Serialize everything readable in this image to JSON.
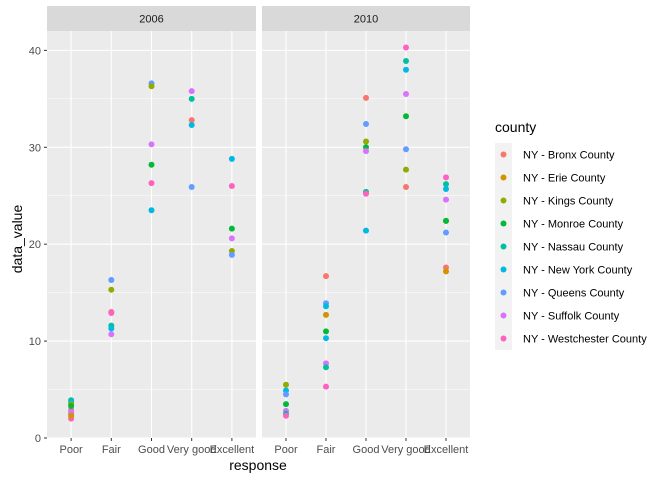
{
  "chart_data": {
    "type": "scatter",
    "xlabel": "response",
    "ylabel": "data_value",
    "categories": [
      "Poor",
      "Fair",
      "Good",
      "Very good",
      "Excellent"
    ],
    "ylim": [
      0,
      42
    ],
    "yticks": [
      0,
      10,
      20,
      30,
      40
    ],
    "grid": true,
    "legend": {
      "title": "county",
      "placement": "right"
    },
    "colors": {
      "panel_bg": "#ebebeb",
      "strip_bg": "#d9d9d9",
      "grid": "#ffffff"
    },
    "series": [
      {
        "name": "NY - Bronx County",
        "color": "#F8766D"
      },
      {
        "name": "NY - Erie County",
        "color": "#D39200"
      },
      {
        "name": "NY - Kings County",
        "color": "#93AA00"
      },
      {
        "name": "NY - Monroe County",
        "color": "#00BA38"
      },
      {
        "name": "NY - Nassau County",
        "color": "#00C19F"
      },
      {
        "name": "NY - New York County",
        "color": "#00B9E3"
      },
      {
        "name": "NY - Queens County",
        "color": "#619CFF"
      },
      {
        "name": "NY - Suffolk County",
        "color": "#DB72FB"
      },
      {
        "name": "NY - Westchester County",
        "color": "#FF61C3"
      }
    ],
    "facets": [
      {
        "label": "2006",
        "points": [
          {
            "series": 0,
            "x": "Poor",
            "y": 2.9
          },
          {
            "series": 4,
            "x": "Poor",
            "y": 3.9
          },
          {
            "series": 5,
            "x": "Poor",
            "y": 3.7
          },
          {
            "series": 2,
            "x": "Poor",
            "y": 3.5
          },
          {
            "series": 3,
            "x": "Poor",
            "y": 3.3
          },
          {
            "series": 6,
            "x": "Poor",
            "y": 2.5
          },
          {
            "series": 7,
            "x": "Poor",
            "y": 2.7
          },
          {
            "series": 8,
            "x": "Poor",
            "y": 2.0
          },
          {
            "series": 1,
            "x": "Poor",
            "y": 2.3
          },
          {
            "series": 6,
            "x": "Fair",
            "y": 16.3
          },
          {
            "series": 2,
            "x": "Fair",
            "y": 15.3
          },
          {
            "series": 0,
            "x": "Fair",
            "y": 13.0
          },
          {
            "series": 8,
            "x": "Fair",
            "y": 12.9
          },
          {
            "series": 4,
            "x": "Fair",
            "y": 11.6
          },
          {
            "series": 5,
            "x": "Fair",
            "y": 11.3
          },
          {
            "series": 7,
            "x": "Fair",
            "y": 10.7
          },
          {
            "series": 6,
            "x": "Good",
            "y": 36.6
          },
          {
            "series": 2,
            "x": "Good",
            "y": 36.3
          },
          {
            "series": 7,
            "x": "Good",
            "y": 30.3
          },
          {
            "series": 3,
            "x": "Good",
            "y": 28.2
          },
          {
            "series": 8,
            "x": "Good",
            "y": 26.3
          },
          {
            "series": 5,
            "x": "Good",
            "y": 23.5
          },
          {
            "series": 7,
            "x": "Very good",
            "y": 35.8
          },
          {
            "series": 4,
            "x": "Very good",
            "y": 35.0
          },
          {
            "series": 0,
            "x": "Very good",
            "y": 32.8
          },
          {
            "series": 5,
            "x": "Very good",
            "y": 32.3
          },
          {
            "series": 6,
            "x": "Very good",
            "y": 25.9
          },
          {
            "series": 5,
            "x": "Excellent",
            "y": 28.8
          },
          {
            "series": 8,
            "x": "Excellent",
            "y": 26.0
          },
          {
            "series": 3,
            "x": "Excellent",
            "y": 21.6
          },
          {
            "series": 7,
            "x": "Excellent",
            "y": 20.6
          },
          {
            "series": 2,
            "x": "Excellent",
            "y": 19.3
          },
          {
            "series": 6,
            "x": "Excellent",
            "y": 18.9
          }
        ]
      },
      {
        "label": "2010",
        "points": [
          {
            "series": 2,
            "x": "Poor",
            "y": 5.5
          },
          {
            "series": 5,
            "x": "Poor",
            "y": 4.9
          },
          {
            "series": 6,
            "x": "Poor",
            "y": 4.5
          },
          {
            "series": 3,
            "x": "Poor",
            "y": 3.5
          },
          {
            "series": 7,
            "x": "Poor",
            "y": 2.8
          },
          {
            "series": 4,
            "x": "Poor",
            "y": 2.5
          },
          {
            "series": 8,
            "x": "Poor",
            "y": 2.3
          },
          {
            "series": 0,
            "x": "Fair",
            "y": 16.7
          },
          {
            "series": 6,
            "x": "Fair",
            "y": 13.9
          },
          {
            "series": 5,
            "x": "Fair",
            "y": 13.6
          },
          {
            "series": 1,
            "x": "Fair",
            "y": 12.7
          },
          {
            "series": 3,
            "x": "Fair",
            "y": 11.0
          },
          {
            "series": 5,
            "x": "Fair",
            "y": 10.3
          },
          {
            "series": 7,
            "x": "Fair",
            "y": 7.7
          },
          {
            "series": 4,
            "x": "Fair",
            "y": 7.3
          },
          {
            "series": 8,
            "x": "Fair",
            "y": 5.3
          },
          {
            "series": 0,
            "x": "Good",
            "y": 35.1
          },
          {
            "series": 6,
            "x": "Good",
            "y": 32.4
          },
          {
            "series": 2,
            "x": "Good",
            "y": 30.6
          },
          {
            "series": 3,
            "x": "Good",
            "y": 30.0
          },
          {
            "series": 7,
            "x": "Good",
            "y": 29.6
          },
          {
            "series": 4,
            "x": "Good",
            "y": 25.4
          },
          {
            "series": 8,
            "x": "Good",
            "y": 25.2
          },
          {
            "series": 5,
            "x": "Good",
            "y": 21.4
          },
          {
            "series": 8,
            "x": "Very good",
            "y": 40.3
          },
          {
            "series": 4,
            "x": "Very good",
            "y": 38.9
          },
          {
            "series": 5,
            "x": "Very good",
            "y": 38.0
          },
          {
            "series": 7,
            "x": "Very good",
            "y": 35.5
          },
          {
            "series": 3,
            "x": "Very good",
            "y": 33.2
          },
          {
            "series": 6,
            "x": "Very good",
            "y": 29.8
          },
          {
            "series": 2,
            "x": "Very good",
            "y": 27.7
          },
          {
            "series": 0,
            "x": "Very good",
            "y": 25.9
          },
          {
            "series": 8,
            "x": "Excellent",
            "y": 26.9
          },
          {
            "series": 4,
            "x": "Excellent",
            "y": 26.2
          },
          {
            "series": 5,
            "x": "Excellent",
            "y": 25.7
          },
          {
            "series": 7,
            "x": "Excellent",
            "y": 24.6
          },
          {
            "series": 2,
            "x": "Excellent",
            "y": 22.4
          },
          {
            "series": 3,
            "x": "Excellent",
            "y": 22.4
          },
          {
            "series": 6,
            "x": "Excellent",
            "y": 21.2
          },
          {
            "series": 0,
            "x": "Excellent",
            "y": 17.6
          },
          {
            "series": 1,
            "x": "Excellent",
            "y": 17.2
          }
        ]
      }
    ]
  }
}
